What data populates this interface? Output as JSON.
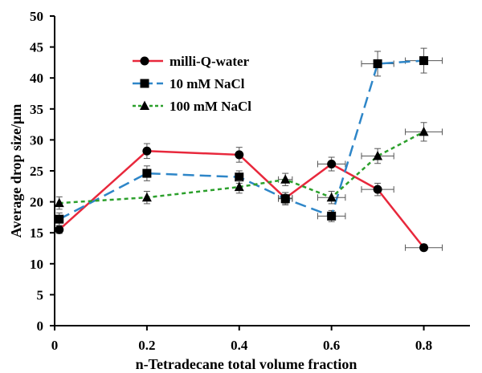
{
  "chart_data": {
    "type": "line",
    "title": "",
    "xlabel": "n-Tetradecane total volume fraction",
    "ylabel": "Average drop size/µm",
    "xlim": [
      0,
      0.9
    ],
    "ylim": [
      0,
      50
    ],
    "x_ticks": [
      0,
      0.2,
      0.4,
      0.6,
      0.8
    ],
    "x_tick_labels": [
      "0",
      "0.2",
      "0.4",
      "0.6",
      "0.8"
    ],
    "y_ticks": [
      0,
      5,
      10,
      15,
      20,
      25,
      30,
      35,
      40,
      45,
      50
    ],
    "y_tick_labels": [
      "0",
      "5",
      "10",
      "15",
      "20",
      "25",
      "30",
      "35",
      "40",
      "45",
      "50"
    ],
    "grid": false,
    "legend_position": "top-left",
    "series": [
      {
        "name": "milli-Q-water",
        "color": "#e8283c",
        "marker": "circle",
        "line_style": "solid",
        "x": [
          0.01,
          0.2,
          0.4,
          0.5,
          0.6,
          0.7,
          0.8
        ],
        "y": [
          15.5,
          28.2,
          27.6,
          20.6,
          26.1,
          22.0,
          12.6
        ],
        "y_err": [
          0.6,
          1.2,
          1.2,
          0.9,
          1.1,
          1.0,
          0.5
        ],
        "x_err": [
          0,
          0,
          0,
          0.015,
          0.03,
          0.035,
          0.04
        ]
      },
      {
        "name": "10 mM NaCl",
        "color": "#2e86c8",
        "marker": "square",
        "line_style": "dashed",
        "x": [
          0.01,
          0.2,
          0.4,
          0.5,
          0.6,
          0.7,
          0.8
        ],
        "y": [
          17.2,
          24.6,
          24.0,
          20.5,
          17.7,
          42.3,
          42.8
        ],
        "y_err": [
          1.0,
          1.2,
          1.0,
          1.0,
          0.9,
          2.0,
          2.0
        ],
        "x_err": [
          0,
          0,
          0,
          0.015,
          0.03,
          0.035,
          0.04
        ]
      },
      {
        "name": "100 mM NaCl",
        "color": "#2ca02c",
        "marker": "triangle",
        "line_style": "dotted",
        "x": [
          0.01,
          0.2,
          0.4,
          0.5,
          0.6,
          0.7,
          0.8
        ],
        "y": [
          19.8,
          20.7,
          22.4,
          23.6,
          20.7,
          27.4,
          31.3
        ],
        "y_err": [
          1.0,
          1.0,
          1.0,
          1.0,
          1.0,
          1.2,
          1.5
        ],
        "x_err": [
          0,
          0,
          0,
          0.015,
          0.03,
          0.035,
          0.04
        ]
      }
    ]
  }
}
